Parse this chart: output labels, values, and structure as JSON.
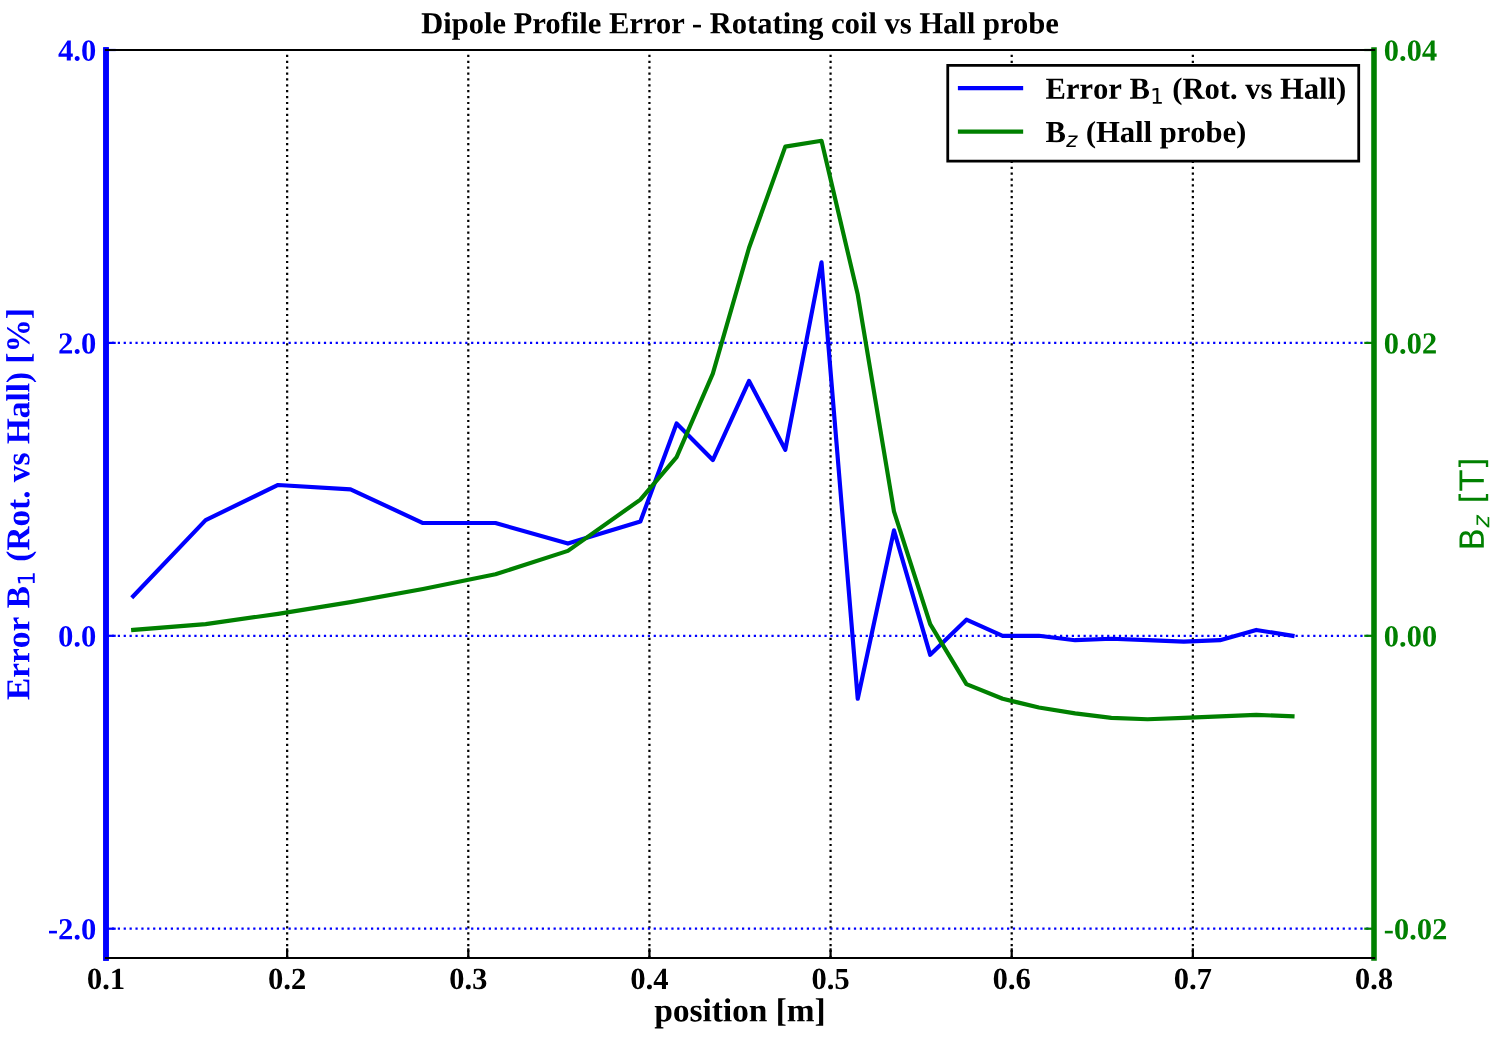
{
  "chart_data": {
    "type": "line",
    "title": "Dipole Profile Error - Rotating coil vs Hall probe",
    "xlabel": "position [m]",
    "ylabel": "Error B$_{1}$ (Rot. vs Hall) [%]",
    "y2label": "B$_{z}$ [T]",
    "x": [
      0.115,
      0.155,
      0.195,
      0.235,
      0.275,
      0.315,
      0.355,
      0.395,
      0.415,
      0.435,
      0.455,
      0.475,
      0.495,
      0.515,
      0.535,
      0.555,
      0.575,
      0.595,
      0.615,
      0.635,
      0.655,
      0.675,
      0.695,
      0.715,
      0.735,
      0.755
    ],
    "series": [
      {
        "name": "Error B$_{1}$ (Rot. vs Hall)",
        "color": "#0000ff",
        "values": [
          0.27,
          0.79,
          1.03,
          1.0,
          0.77,
          0.77,
          0.63,
          0.78,
          1.45,
          1.2,
          1.74,
          1.27,
          2.55,
          -0.43,
          0.72,
          -0.13,
          0.11,
          0.0,
          0.0,
          -0.03,
          -0.02,
          -0.03,
          -0.04,
          -0.03,
          0.04,
          0.0
        ]
      },
      {
        "name": "B$_{z}$ (Hall probe)",
        "color": "#008000",
        "axis": "y2",
        "values": [
          0.0004,
          0.0008,
          0.0015,
          0.0023,
          0.0032,
          0.0042,
          0.0058,
          0.0093,
          0.0122,
          0.0179,
          0.0265,
          0.0334,
          0.0338,
          0.0233,
          0.0085,
          0.0008,
          -0.0033,
          -0.0043,
          -0.0049,
          -0.0053,
          -0.0056,
          -0.0057,
          -0.0056,
          -0.0055,
          -0.0054,
          -0.0055
        ]
      }
    ],
    "xlim": [
      0.1,
      0.8
    ],
    "xticks": [
      0.1,
      0.2,
      0.3,
      0.4,
      0.5,
      0.6,
      0.7,
      0.8
    ],
    "ylim": [
      -2.2,
      4.0
    ],
    "yticks": [
      {
        "value": 4,
        "label": "4.0"
      },
      {
        "value": 2,
        "label": "2.0"
      },
      {
        "value": 0,
        "label": "0.0"
      },
      {
        "value": -2,
        "label": "-2.0"
      }
    ],
    "y2lim": [
      -0.022,
      0.04
    ],
    "y2ticks": [
      0.04,
      0.02,
      {
        "value": 0,
        "label": "0.00"
      },
      {
        "value": -0.02,
        "label": "-0.02"
      }
    ],
    "grid": true,
    "legend": "top right",
    "line_style": "solid",
    "marker": "none"
  }
}
